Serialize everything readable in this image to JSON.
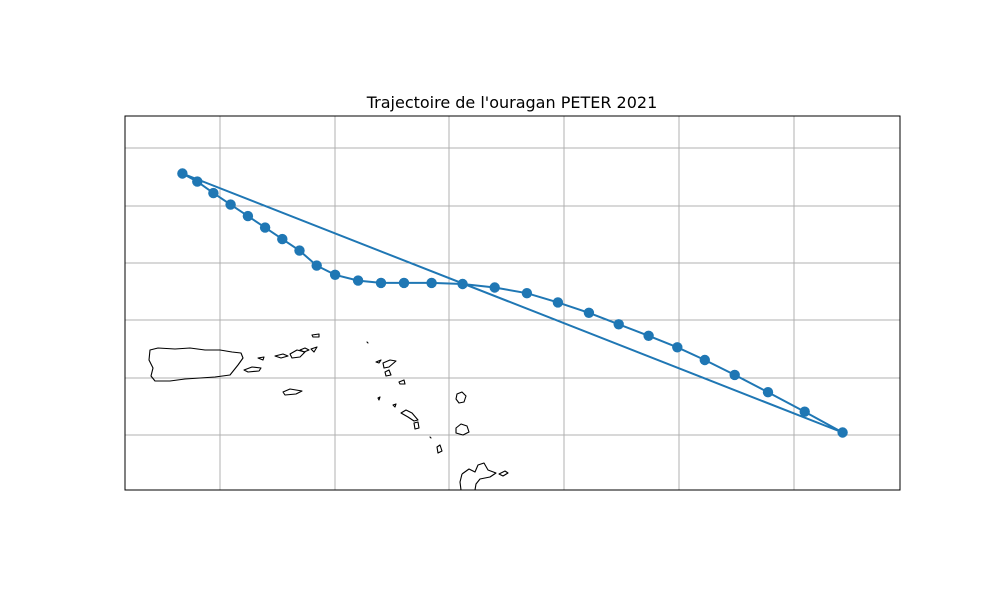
{
  "chart_data": {
    "type": "map-track",
    "title": "Trajectoire de l'ouragan PETER 2021",
    "grid": true,
    "line_color": "#1f77b4",
    "marker": "circle",
    "xlim": [
      -67.5,
      -60.75
    ],
    "ylim": [
      17.1,
      20.35
    ],
    "track": [
      {
        "lon": -67.0,
        "lat": 19.85
      },
      {
        "lon": -66.87,
        "lat": 19.78
      },
      {
        "lon": -66.73,
        "lat": 19.68
      },
      {
        "lon": -66.58,
        "lat": 19.58
      },
      {
        "lon": -66.43,
        "lat": 19.48
      },
      {
        "lon": -66.28,
        "lat": 19.38
      },
      {
        "lon": -66.13,
        "lat": 19.28
      },
      {
        "lon": -65.98,
        "lat": 19.18
      },
      {
        "lon": -65.83,
        "lat": 19.05
      },
      {
        "lon": -65.67,
        "lat": 18.97
      },
      {
        "lon": -65.47,
        "lat": 18.92
      },
      {
        "lon": -65.27,
        "lat": 18.9
      },
      {
        "lon": -65.07,
        "lat": 18.9
      },
      {
        "lon": -64.83,
        "lat": 18.9
      },
      {
        "lon": -64.56,
        "lat": 18.89
      },
      {
        "lon": -64.28,
        "lat": 18.86
      },
      {
        "lon": -64.0,
        "lat": 18.81
      },
      {
        "lon": -63.73,
        "lat": 18.73
      },
      {
        "lon": -63.46,
        "lat": 18.64
      },
      {
        "lon": -63.2,
        "lat": 18.54
      },
      {
        "lon": -62.94,
        "lat": 18.44
      },
      {
        "lon": -62.69,
        "lat": 18.34
      },
      {
        "lon": -62.45,
        "lat": 18.23
      },
      {
        "lon": -62.19,
        "lat": 18.1
      },
      {
        "lon": -61.9,
        "lat": 17.95
      },
      {
        "lon": -61.58,
        "lat": 17.78
      },
      {
        "lon": -61.25,
        "lat": 17.6
      },
      {
        "lon": -67.0,
        "lat": 19.85
      }
    ]
  }
}
